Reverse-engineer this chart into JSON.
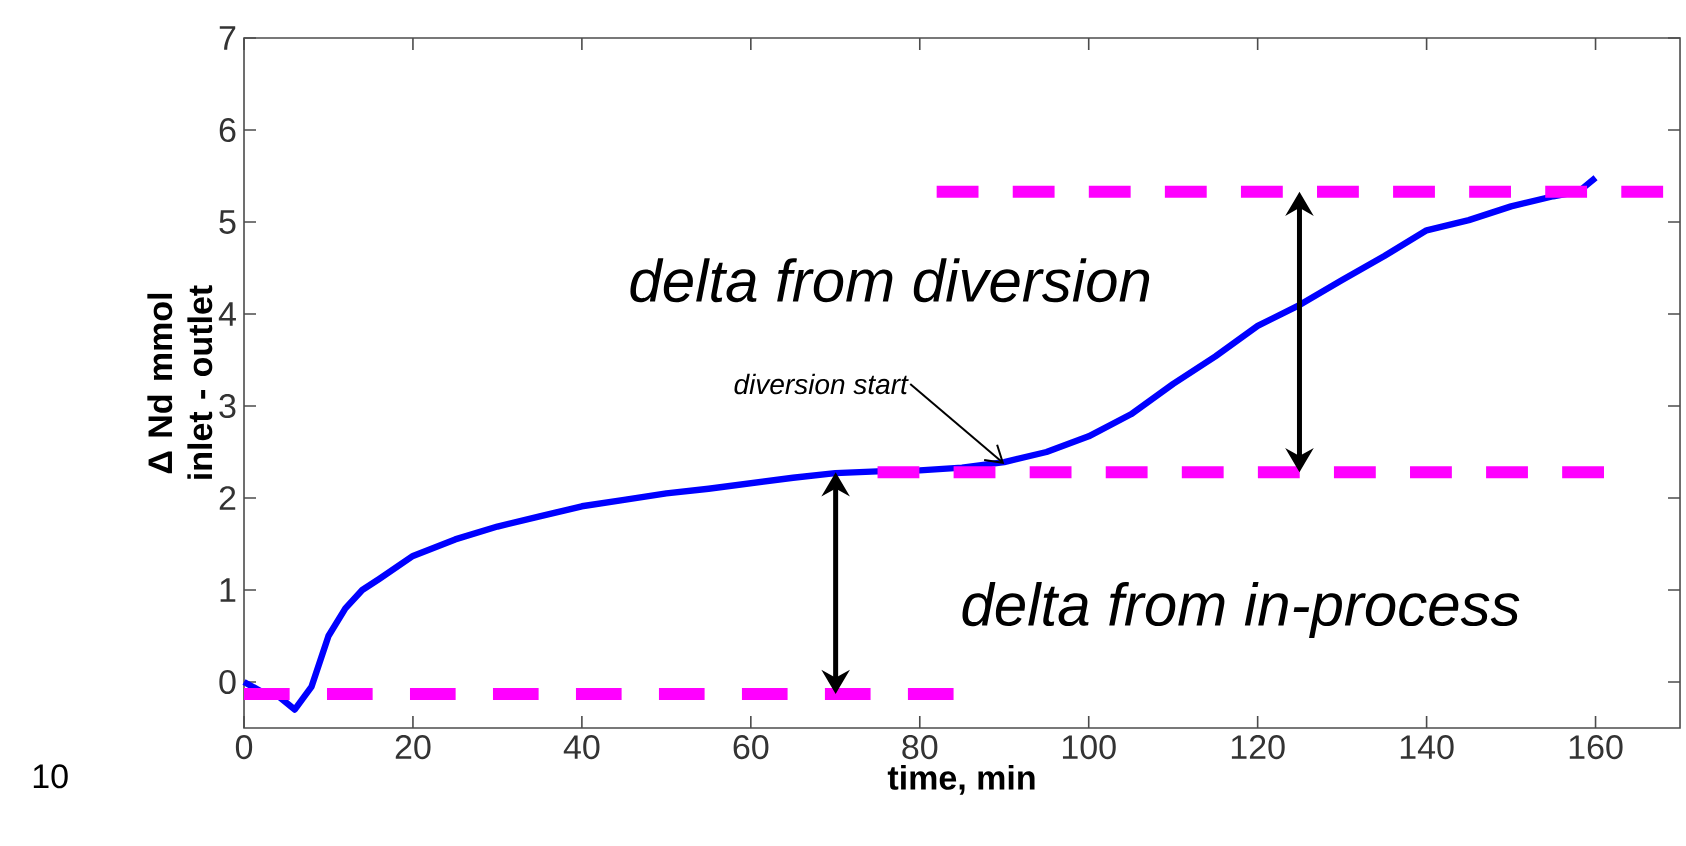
{
  "chart_data": {
    "type": "line",
    "xlabel": "time, min",
    "ylabel": "Δ Nd mmol inlet - outlet",
    "xlim": [
      0,
      170
    ],
    "ylim": [
      -0.5,
      7
    ],
    "xticks": [
      0,
      20,
      40,
      60,
      80,
      100,
      120,
      140,
      160
    ],
    "yticks": [
      0,
      1,
      2,
      3,
      4,
      5,
      6,
      7
    ],
    "series": [
      {
        "color": "#0000ff",
        "line_style": "solid",
        "x": [
          0,
          2,
          4,
          6,
          8,
          10,
          12,
          14,
          16,
          20,
          25,
          30,
          35,
          40,
          45,
          50,
          55,
          60,
          65,
          70,
          75,
          80,
          85,
          90,
          95,
          100,
          105,
          110,
          115,
          120,
          125,
          130,
          135,
          140,
          145,
          150,
          155,
          158,
          160
        ],
        "values": [
          0.0,
          -0.1,
          -0.15,
          -0.3,
          -0.05,
          0.5,
          0.8,
          1.0,
          1.12,
          1.37,
          1.55,
          1.69,
          1.8,
          1.91,
          1.98,
          2.05,
          2.1,
          2.16,
          2.22,
          2.27,
          2.29,
          2.3,
          2.33,
          2.39,
          2.5,
          2.67,
          2.91,
          3.24,
          3.54,
          3.87,
          4.1,
          4.37,
          4.63,
          4.91,
          5.02,
          5.17,
          5.28,
          5.33,
          5.48
        ]
      },
      {
        "color": "#ff00ff",
        "line_style": "dashed",
        "x": [
          0,
          84
        ],
        "values": [
          -0.13,
          -0.13
        ]
      },
      {
        "color": "#ff00ff",
        "line_style": "dashed",
        "x": [
          75,
          161
        ],
        "values": [
          2.28,
          2.28
        ]
      },
      {
        "color": "#ff00ff",
        "line_style": "dashed",
        "x": [
          82,
          168
        ],
        "values": [
          5.33,
          5.33
        ]
      }
    ],
    "annotations": [
      "delta from diversion",
      "delta from in-process",
      {
        "text": "diversion start",
        "x": 90,
        "y": 2.37
      },
      "10"
    ]
  }
}
